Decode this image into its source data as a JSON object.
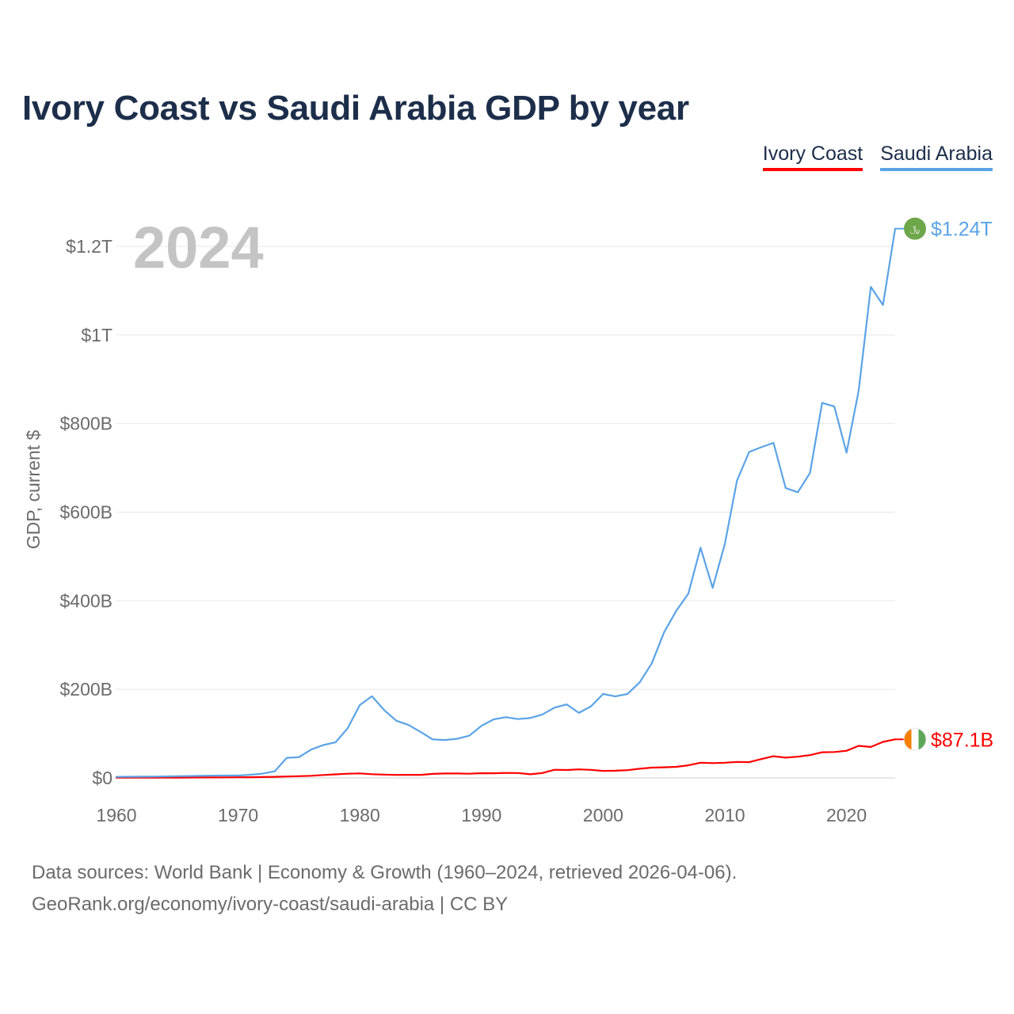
{
  "title": "Ivory Coast vs Saudi Arabia GDP by year",
  "legend": {
    "items": [
      {
        "label": "Ivory Coast",
        "color": "#ff0000"
      },
      {
        "label": "Saudi Arabia",
        "color": "#5ba3e6"
      }
    ]
  },
  "year_display": "2024",
  "footer": {
    "line1": "Data sources: World Bank | Economy & Growth (1960–2024, retrieved 2026-04-06).",
    "line2": "GeoRank.org/economy/ivory-coast/saudi-arabia | CC BY"
  },
  "end_labels": {
    "saudi": "$1.24T",
    "ivory": "$87.1B"
  },
  "icons": {
    "saudi": "saudi-arabia-flag-icon",
    "ivory": "ivory-coast-flag-icon"
  },
  "chart_data": {
    "type": "line",
    "title": "Ivory Coast vs Saudi Arabia GDP by year",
    "xlabel": "",
    "ylabel": "GDP, current $",
    "xlim": [
      1960,
      2024
    ],
    "ylim": [
      0,
      1300
    ],
    "y_unit": "billions USD",
    "x_ticks": [
      1960,
      1970,
      1980,
      1990,
      2000,
      2010,
      2020
    ],
    "y_ticks": [
      {
        "value": 0,
        "label": "$0"
      },
      {
        "value": 200,
        "label": "$200B"
      },
      {
        "value": 400,
        "label": "$400B"
      },
      {
        "value": 600,
        "label": "$600B"
      },
      {
        "value": 800,
        "label": "$800B"
      },
      {
        "value": 1000,
        "label": "$1T"
      },
      {
        "value": 1200,
        "label": "$1.2T"
      }
    ],
    "grid": true,
    "legend_position": "top-right",
    "x": [
      1960,
      1961,
      1962,
      1963,
      1964,
      1965,
      1966,
      1967,
      1968,
      1969,
      1970,
      1971,
      1972,
      1973,
      1974,
      1975,
      1976,
      1977,
      1978,
      1979,
      1980,
      1981,
      1982,
      1983,
      1984,
      1985,
      1986,
      1987,
      1988,
      1989,
      1990,
      1991,
      1992,
      1993,
      1994,
      1995,
      1996,
      1997,
      1998,
      1999,
      2000,
      2001,
      2002,
      2003,
      2004,
      2005,
      2006,
      2007,
      2008,
      2009,
      2010,
      2011,
      2012,
      2013,
      2014,
      2015,
      2016,
      2017,
      2018,
      2019,
      2020,
      2021,
      2022,
      2023,
      2024
    ],
    "series": [
      {
        "name": "Ivory Coast",
        "color": "#ff0000",
        "values": [
          0.5,
          0.6,
          0.6,
          0.7,
          0.8,
          0.8,
          0.9,
          1.0,
          1.1,
          1.3,
          1.5,
          1.6,
          1.9,
          2.5,
          3.3,
          4.0,
          4.9,
          6.6,
          8.1,
          9.4,
          10.2,
          8.4,
          7.6,
          6.8,
          6.9,
          7.0,
          9.1,
          10.0,
          10.1,
          9.4,
          10.8,
          10.5,
          11.2,
          11.1,
          8.3,
          11.0,
          18.4,
          17.8,
          19.3,
          18.3,
          15.9,
          16.2,
          17.6,
          20.7,
          23.2,
          23.9,
          25.0,
          28.5,
          34.3,
          33.4,
          34.4,
          36.1,
          35.6,
          42.5,
          49.0,
          45.8,
          47.9,
          51.5,
          58.0,
          58.5,
          61.3,
          72.5,
          70.0,
          81.4,
          87.1
        ]
      },
      {
        "name": "Saudi Arabia",
        "color": "#5ba3e6",
        "values": [
          2.5,
          2.7,
          2.9,
          3.1,
          3.4,
          3.9,
          4.3,
          4.6,
          5.1,
          5.4,
          5.4,
          7.2,
          9.7,
          14.9,
          45.4,
          46.8,
          64.0,
          74.2,
          80.3,
          111.9,
          164.5,
          184.3,
          153.2,
          129.2,
          119.6,
          103.9,
          86.9,
          85.7,
          88.3,
          95.3,
          117.6,
          132.2,
          137.1,
          132.8,
          135.2,
          143.3,
          158.7,
          165.9,
          146.8,
          161.7,
          189.5,
          184.1,
          189.6,
          215.8,
          258.7,
          328.5,
          376.9,
          415.9,
          519.8,
          429.1,
          528.2,
          671.2,
          735.9,
          746.6,
          756.4,
          654.3,
          644.9,
          688.6,
          846.6,
          838.6,
          734.3,
          874.2,
          1108.6,
          1067.6,
          1240.0
        ]
      }
    ]
  }
}
